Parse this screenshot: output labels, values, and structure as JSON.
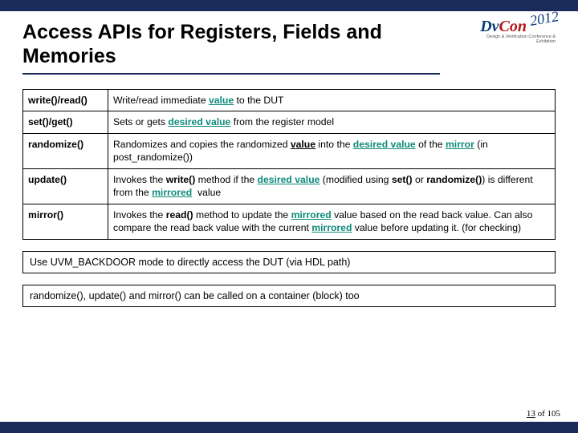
{
  "colors": {
    "border_bar": "#1a2a5a",
    "text": "#000000",
    "teal": "#0d8a7a",
    "logo_blue": "#0a3a7a",
    "logo_red": "#b01818"
  },
  "title": "Access APIs for Registers, Fields and Memories",
  "logo": {
    "dv": "Dv",
    "con": "Con",
    "year": "2012",
    "sub": "Design & Verification Conference & Exhibition"
  },
  "table": {
    "rows": [
      {
        "api": "write()/read()",
        "desc_html": "Write/read immediate <span class='u teal b'>value</span> to the DUT"
      },
      {
        "api": "set()/get()",
        "desc_html": "Sets or gets <span class='u teal b'>desired value</span> from the register model"
      },
      {
        "api": "randomize()",
        "desc_html": "Randomizes and copies the randomized <span class='u b'>value</span> into the <span class='u teal b'>desired value</span> of the <span class='u teal b'>mirror</span> (in post_randomize())"
      },
      {
        "api": "update()",
        "desc_html": "Invokes the <span class='b'>write()</span> method if the <span class='u teal b'>desired value</span> (modified using <span class='b'>set()</span> or <span class='b'>randomize()</span>) is different from the <span class='u teal b'>mirrored</span>&nbsp; value"
      },
      {
        "api": "mirror()",
        "desc_html": "Invokes the <span class='b'>read()</span> method to update the <span class='u teal b'>mirrored</span> value based on the read back value. Can also compare the read back value with the current <span class='u teal b'>mirrored</span> value before updating it. (for checking)"
      }
    ]
  },
  "notes": [
    "Use UVM_BACKDOOR mode to directly access the DUT (via HDL path)",
    "randomize(), update() and mirror() can be called on a container (block) too"
  ],
  "page": {
    "current": "13",
    "of": "of 105"
  }
}
